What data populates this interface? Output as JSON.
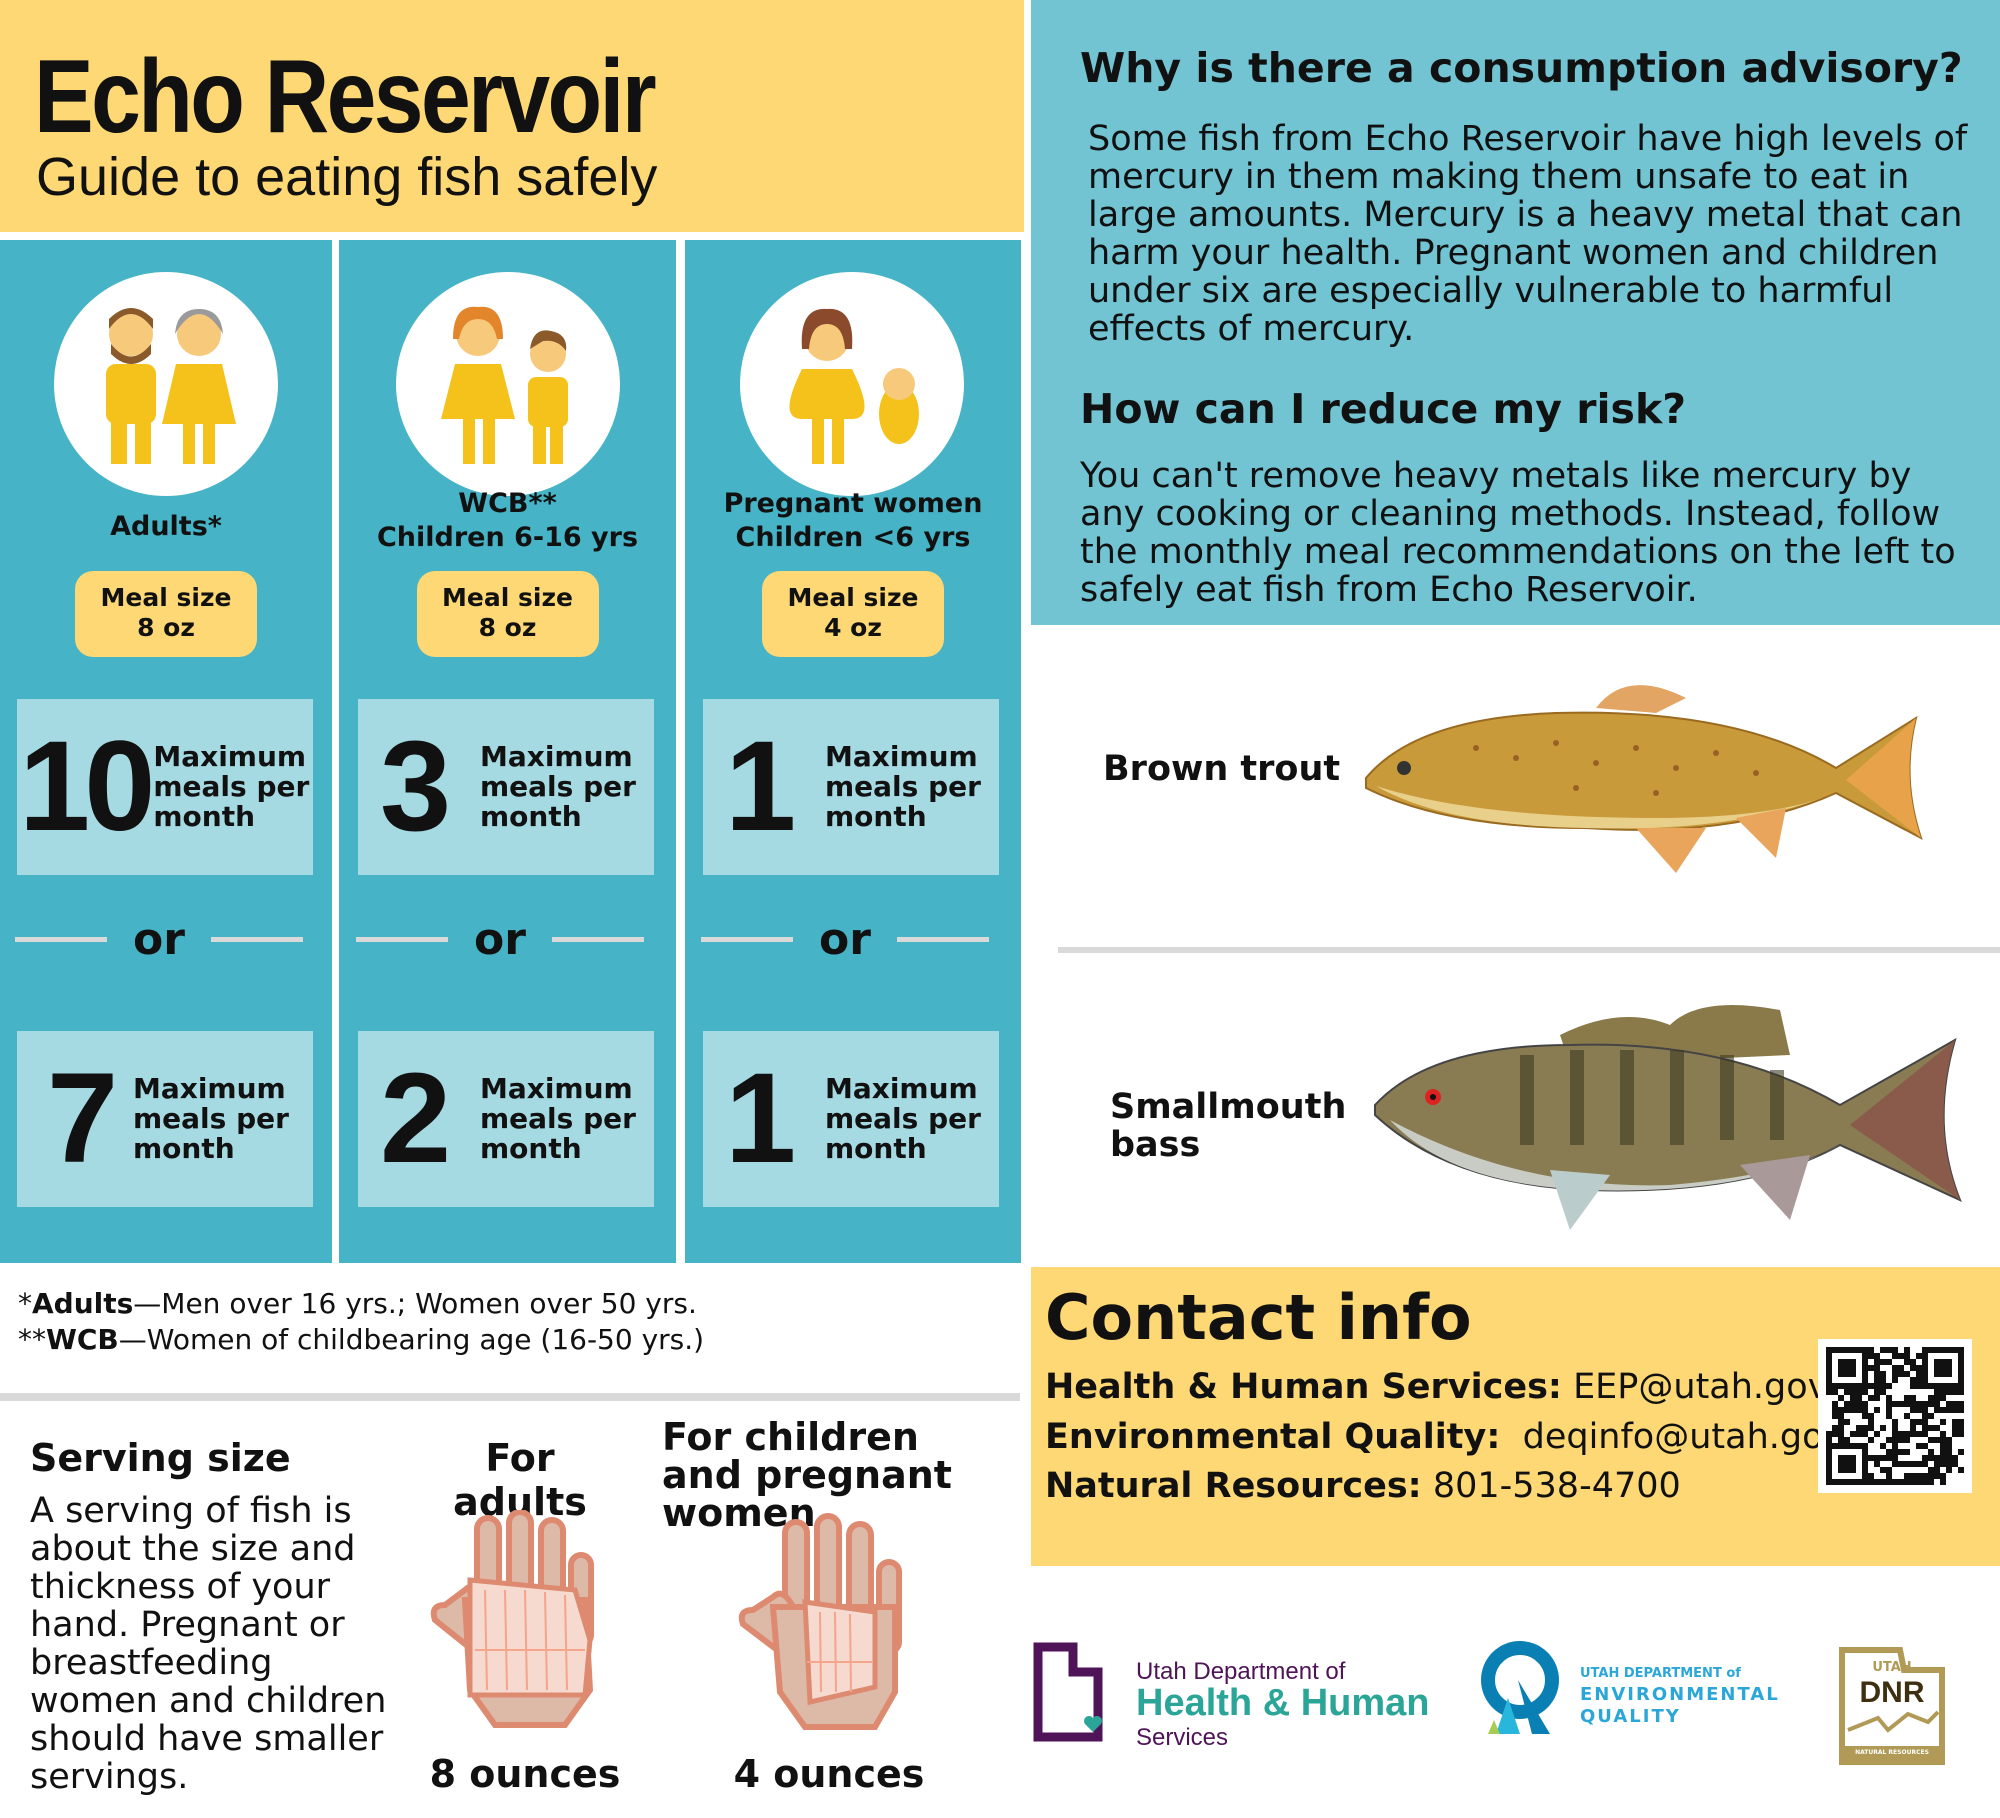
{
  "header": {
    "title": "Echo Reservoir",
    "subtitle": "Guide to eating fish safely"
  },
  "groups": [
    {
      "icon": "adults-icon",
      "label_lines": [
        "Adults*"
      ],
      "meal_label": "Meal size",
      "meal_size": "8 oz",
      "first": {
        "number": "10",
        "text": [
          "Maximum",
          "meals per",
          "month"
        ]
      },
      "or": "or",
      "second": {
        "number": "7",
        "text": [
          "Maximum",
          "meals per",
          "month"
        ]
      }
    },
    {
      "icon": "wcb-children-icon",
      "label_lines": [
        "WCB**",
        "Children 6-16 yrs"
      ],
      "meal_label": "Meal size",
      "meal_size": "8 oz",
      "first": {
        "number": "3",
        "text": [
          "Maximum",
          "meals per",
          "month"
        ]
      },
      "or": "or",
      "second": {
        "number": "2",
        "text": [
          "Maximum",
          "meals per",
          "month"
        ]
      }
    },
    {
      "icon": "pregnant-child-icon",
      "label_lines": [
        "Pregnant women",
        "Children <6 yrs"
      ],
      "meal_label": "Meal size",
      "meal_size": "4 oz",
      "first": {
        "number": "1",
        "text": [
          "Maximum",
          "meals per",
          "month"
        ]
      },
      "or": "or",
      "second": {
        "number": "1",
        "text": [
          "Maximum",
          "meals per",
          "month"
        ]
      }
    }
  ],
  "footnotes": [
    {
      "prefix": "*",
      "term": "Adults",
      "text": "—Men over 16 yrs.; Women over 50 yrs."
    },
    {
      "prefix": "**",
      "term": "WCB",
      "text": "—Women of childbearing age (16-50 yrs.)"
    }
  ],
  "serving": {
    "title": "Serving size",
    "body": "A serving of fish is about the size and thickness of your hand. Pregnant or breastfeeding women and children should have smaller servings.",
    "adults_heading": "For adults",
    "adults_amount": "8 ounces",
    "children_heading": "For children and pregnant women",
    "children_amount": "4 ounces"
  },
  "advisory": {
    "why_heading": "Why is there a consumption advisory?",
    "why_body": "Some fish from Echo Reservoir have high levels of mercury in them making them unsafe to eat in large amounts. Mercury is a heavy metal that can harm your health. Pregnant women and children under six are especially vulnerable to harmful effects of mercury.",
    "reduce_heading": "How can I reduce my risk?",
    "reduce_body": "You can't remove heavy metals like mercury by any cooking or cleaning methods. Instead, follow the monthly meal recommendations on the left to safely eat fish from Echo Reservoir."
  },
  "fish": [
    {
      "name": "Brown trout"
    },
    {
      "name": "Smallmouth bass"
    }
  ],
  "contact": {
    "title": "Contact info",
    "lines": [
      {
        "label": "Health & Human Services:",
        "value": "EEP@utah.gov"
      },
      {
        "label": "Environmental Quality:",
        "value": "deqinfo@utah.gov"
      },
      {
        "label": "Natural Resources:",
        "value": "801-538-4700"
      }
    ]
  },
  "logos": {
    "dhhs": {
      "line1": "Utah Department of",
      "line2": "Health & Human",
      "line3": "Services"
    },
    "deq": {
      "line1": "UTAH DEPARTMENT of",
      "line2": "ENVIRONMENTAL",
      "line3": "QUALITY"
    },
    "dnr": {
      "line1": "UTAH",
      "line2": "DNR",
      "line3": "NATURAL RESOURCES"
    }
  },
  "colors": {
    "yellow": "#fdd874",
    "teal": "#47b3c6",
    "light_teal": "#a6dae3",
    "sky": "#72c4d3"
  }
}
